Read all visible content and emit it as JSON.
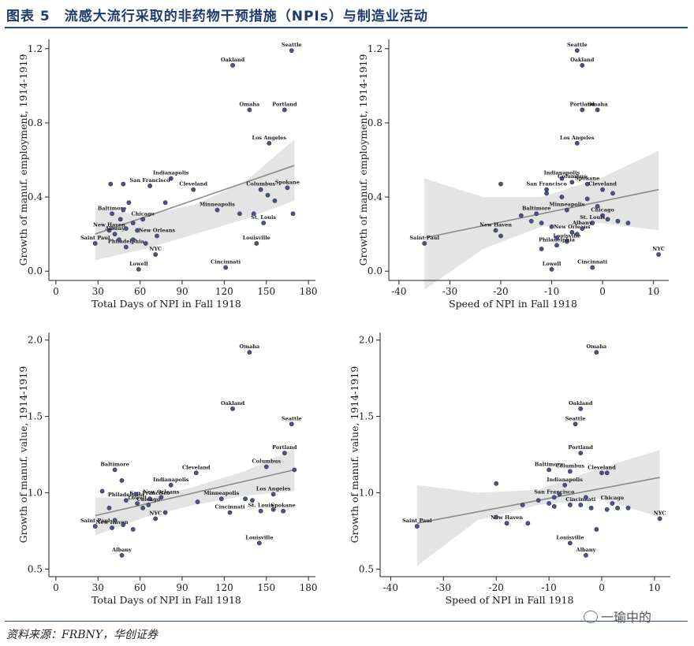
{
  "header": {
    "figure_number": "图表 5",
    "title": "流感大流行采取的非药物干预措施（NPIs）与制造业活动"
  },
  "footer": {
    "source": "资料来源：FRBNY，华创证券",
    "watermark": "一瑜中的"
  },
  "chart_data": [
    {
      "type": "scatter",
      "title": "",
      "xlabel": "Total Days of NPI in Fall 1918",
      "ylabel": "Growth of manuf. employment, 1914-1919",
      "xlim": [
        -5,
        185
      ],
      "ylim": [
        -0.05,
        1.25
      ],
      "xticks": [
        0,
        30,
        60,
        90,
        120,
        150,
        180
      ],
      "yticks": [
        0.0,
        0.4,
        0.8,
        1.2
      ],
      "ytick_labels": [
        "0.0",
        "0.4",
        "0.8",
        "1.2"
      ],
      "fit": {
        "x0": 28,
        "y0": 0.2,
        "x1": 170,
        "y1": 0.57
      },
      "band": {
        "lower": [
          0.06,
          0.12,
          0.2,
          0.28,
          0.38
        ],
        "upper": [
          0.34,
          0.3,
          0.36,
          0.48,
          0.71
        ]
      },
      "points": [
        {
          "label": "Seattle",
          "x": 168,
          "y": 1.19
        },
        {
          "label": "Oakland",
          "x": 126,
          "y": 1.11
        },
        {
          "label": "Omaha",
          "x": 138,
          "y": 0.87
        },
        {
          "label": "Portland",
          "x": 163,
          "y": 0.87
        },
        {
          "label": "Los Angeles",
          "x": 152,
          "y": 0.69
        },
        {
          "label": "Indianapolis",
          "x": 82,
          "y": 0.5
        },
        {
          "label": "San Francisco",
          "x": 67,
          "y": 0.46
        },
        {
          "label": "Cleveland",
          "x": 98,
          "y": 0.44
        },
        {
          "label": "Columbus",
          "x": 146,
          "y": 0.44
        },
        {
          "label": "Spokane",
          "x": 165,
          "y": 0.45
        },
        {
          "label": "Minneapolis",
          "x": 115,
          "y": 0.33
        },
        {
          "label": "St. Louis",
          "x": 148,
          "y": 0.26
        },
        {
          "label": "Baltimore",
          "x": 40,
          "y": 0.31
        },
        {
          "label": "Chicago",
          "x": 62,
          "y": 0.28
        },
        {
          "label": "New Haven",
          "x": 38,
          "y": 0.22
        },
        {
          "label": "Albany",
          "x": 42,
          "y": 0.2
        },
        {
          "label": "Saint Paul",
          "x": 28,
          "y": 0.15
        },
        {
          "label": "New Orleans",
          "x": 72,
          "y": 0.19
        },
        {
          "label": "Philadelphia",
          "x": 50,
          "y": 0.13
        },
        {
          "label": "NYC",
          "x": 71,
          "y": 0.09
        },
        {
          "label": "Louisville",
          "x": 143,
          "y": 0.15
        },
        {
          "label": "Lowell",
          "x": 59,
          "y": 0.01
        },
        {
          "label": "Cincinnati",
          "x": 121,
          "y": 0.02
        },
        {
          "label": "",
          "x": 39,
          "y": 0.47
        },
        {
          "label": "",
          "x": 48,
          "y": 0.47
        },
        {
          "label": "",
          "x": 52,
          "y": 0.37
        },
        {
          "label": "",
          "x": 48,
          "y": 0.33
        },
        {
          "label": "",
          "x": 46,
          "y": 0.28
        },
        {
          "label": "",
          "x": 55,
          "y": 0.26
        },
        {
          "label": "",
          "x": 50,
          "y": 0.23
        },
        {
          "label": "",
          "x": 58,
          "y": 0.22
        },
        {
          "label": "",
          "x": 45,
          "y": 0.17
        },
        {
          "label": "",
          "x": 55,
          "y": 0.17
        },
        {
          "label": "",
          "x": 64,
          "y": 0.15
        },
        {
          "label": "",
          "x": 78,
          "y": 0.37
        },
        {
          "label": "",
          "x": 131,
          "y": 0.31
        },
        {
          "label": "",
          "x": 141,
          "y": 0.31
        },
        {
          "label": "",
          "x": 151,
          "y": 0.41
        },
        {
          "label": "",
          "x": 156,
          "y": 0.38
        },
        {
          "label": "",
          "x": 169,
          "y": 0.31
        }
      ]
    },
    {
      "type": "scatter",
      "title": "",
      "xlabel": "Speed of NPI in Fall 1918",
      "ylabel": "Growth of manuf. employment, 1914-1919",
      "xlim": [
        -42,
        13
      ],
      "ylim": [
        -0.05,
        1.25
      ],
      "xticks": [
        -40,
        -30,
        -20,
        -10,
        0,
        10
      ],
      "yticks": [
        0.0,
        0.4,
        0.8,
        1.2
      ],
      "ytick_labels": [
        "0.0",
        "0.4",
        "0.8",
        "1.2"
      ],
      "fit": {
        "x0": -35,
        "y0": 0.18,
        "x1": 11,
        "y1": 0.44
      },
      "band": {
        "lower": [
          -0.1,
          0.12,
          0.24,
          0.26,
          0.22
        ],
        "upper": [
          0.5,
          0.4,
          0.4,
          0.5,
          0.65
        ]
      },
      "points": [
        {
          "label": "Seattle",
          "x": -5,
          "y": 1.19
        },
        {
          "label": "Oakland",
          "x": -4,
          "y": 1.11
        },
        {
          "label": "Portland",
          "x": -4,
          "y": 0.87
        },
        {
          "label": "Omaha",
          "x": -1,
          "y": 0.87
        },
        {
          "label": "Los Angeles",
          "x": -5,
          "y": 0.69
        },
        {
          "label": "Indianapolis",
          "x": -8,
          "y": 0.5
        },
        {
          "label": "Columbus",
          "x": -6,
          "y": 0.48
        },
        {
          "label": "Spokane",
          "x": -3,
          "y": 0.47
        },
        {
          "label": "San Francisco",
          "x": -11,
          "y": 0.44
        },
        {
          "label": "Cleveland",
          "x": 0,
          "y": 0.44
        },
        {
          "label": "Minneapolis",
          "x": -7,
          "y": 0.33
        },
        {
          "label": "Baltimore",
          "x": -13,
          "y": 0.31
        },
        {
          "label": "Chicago",
          "x": 0,
          "y": 0.3
        },
        {
          "label": "St. Louis",
          "x": -2,
          "y": 0.26
        },
        {
          "label": "New Haven",
          "x": -21,
          "y": 0.22
        },
        {
          "label": "New Orleans",
          "x": -6,
          "y": 0.21
        },
        {
          "label": "Albany",
          "x": -4,
          "y": 0.23
        },
        {
          "label": "Louisville",
          "x": -7,
          "y": 0.16
        },
        {
          "label": "Philadelphia",
          "x": -9,
          "y": 0.14
        },
        {
          "label": "Saint Paul",
          "x": -35,
          "y": 0.15
        },
        {
          "label": "NYC",
          "x": 11,
          "y": 0.09
        },
        {
          "label": "Lowell",
          "x": -10,
          "y": 0.01
        },
        {
          "label": "Cincinnati",
          "x": -2,
          "y": 0.02
        },
        {
          "label": "",
          "x": -20,
          "y": 0.47
        },
        {
          "label": "",
          "x": -20,
          "y": 0.19
        },
        {
          "label": "",
          "x": -16,
          "y": 0.3
        },
        {
          "label": "",
          "x": -14,
          "y": 0.27
        },
        {
          "label": "",
          "x": -12,
          "y": 0.26
        },
        {
          "label": "",
          "x": -10,
          "y": 0.24
        },
        {
          "label": "",
          "x": -8,
          "y": 0.4
        },
        {
          "label": "",
          "x": -3,
          "y": 0.39
        },
        {
          "label": "",
          "x": -1,
          "y": 0.35
        },
        {
          "label": "",
          "x": 1,
          "y": 0.28
        },
        {
          "label": "",
          "x": 3,
          "y": 0.27
        },
        {
          "label": "",
          "x": 5,
          "y": 0.26
        },
        {
          "label": "",
          "x": 2,
          "y": 0.42
        },
        {
          "label": "",
          "x": -12,
          "y": 0.12
        },
        {
          "label": "",
          "x": -9,
          "y": 0.18
        },
        {
          "label": "",
          "x": -11,
          "y": 0.42
        },
        {
          "label": "",
          "x": -5,
          "y": 0.2
        }
      ]
    },
    {
      "type": "scatter",
      "title": "",
      "xlabel": "Total Days of NPI in Fall 1918",
      "ylabel": "Growth of manuf. value, 1914-1919",
      "xlim": [
        -5,
        185
      ],
      "ylim": [
        0.45,
        2.05
      ],
      "xticks": [
        0,
        30,
        60,
        90,
        120,
        150,
        180
      ],
      "yticks": [
        0.5,
        1.0,
        1.5,
        2.0
      ],
      "ytick_labels": [
        "0.5",
        "1.0",
        "1.5",
        "2.0"
      ],
      "fit": {
        "x0": 28,
        "y0": 0.85,
        "x1": 170,
        "y1": 1.15
      },
      "band": {
        "lower": [
          0.72,
          0.84,
          0.92,
          0.98,
          1.01
        ],
        "upper": [
          0.97,
          0.96,
          1.04,
          1.14,
          1.29
        ]
      },
      "points": [
        {
          "label": "Omaha",
          "x": 138,
          "y": 1.92
        },
        {
          "label": "Oakland",
          "x": 126,
          "y": 1.55
        },
        {
          "label": "Seattle",
          "x": 168,
          "y": 1.45
        },
        {
          "label": "Portland",
          "x": 163,
          "y": 1.26
        },
        {
          "label": "Columbus",
          "x": 150,
          "y": 1.17
        },
        {
          "label": "Baltimore",
          "x": 42,
          "y": 1.15
        },
        {
          "label": "Cleveland",
          "x": 100,
          "y": 1.13
        },
        {
          "label": "Indianapolis",
          "x": 82,
          "y": 1.05
        },
        {
          "label": "Los Angeles",
          "x": 155,
          "y": 0.99
        },
        {
          "label": "Minneapolis",
          "x": 118,
          "y": 0.96
        },
        {
          "label": "New Orleans",
          "x": 75,
          "y": 0.97
        },
        {
          "label": "San Francisco",
          "x": 67,
          "y": 0.96
        },
        {
          "label": "Philadelphia",
          "x": 50,
          "y": 0.95
        },
        {
          "label": "Lowell",
          "x": 58,
          "y": 0.93
        },
        {
          "label": "Chicago",
          "x": 66,
          "y": 0.92
        },
        {
          "label": "Cincinnati",
          "x": 124,
          "y": 0.87
        },
        {
          "label": "St. Louis",
          "x": 146,
          "y": 0.88
        },
        {
          "label": "Spokane",
          "x": 162,
          "y": 0.88
        },
        {
          "label": "NYC",
          "x": 71,
          "y": 0.83
        },
        {
          "label": "Saint Paul",
          "x": 28,
          "y": 0.78
        },
        {
          "label": "New Haven",
          "x": 40,
          "y": 0.77
        },
        {
          "label": "Louisville",
          "x": 145,
          "y": 0.67
        },
        {
          "label": "Albany",
          "x": 47,
          "y": 0.59
        },
        {
          "label": "",
          "x": 33,
          "y": 1.01
        },
        {
          "label": "",
          "x": 47,
          "y": 1.08
        },
        {
          "label": "",
          "x": 38,
          "y": 0.9
        },
        {
          "label": "",
          "x": 42,
          "y": 0.82
        },
        {
          "label": "",
          "x": 48,
          "y": 0.79
        },
        {
          "label": "",
          "x": 55,
          "y": 0.76
        },
        {
          "label": "",
          "x": 62,
          "y": 0.9
        },
        {
          "label": "",
          "x": 78,
          "y": 0.87
        },
        {
          "label": "",
          "x": 101,
          "y": 0.94
        },
        {
          "label": "",
          "x": 135,
          "y": 0.96
        },
        {
          "label": "",
          "x": 155,
          "y": 0.89
        },
        {
          "label": "",
          "x": 170,
          "y": 1.15
        },
        {
          "label": "",
          "x": 140,
          "y": 0.95
        },
        {
          "label": "",
          "x": 57,
          "y": 0.99
        }
      ]
    },
    {
      "type": "scatter",
      "title": "",
      "xlabel": "Speed of NPI in Fall 1918",
      "ylabel": "Growth of manuf. value, 1914-1919",
      "xlim": [
        -42,
        13
      ],
      "ylim": [
        0.45,
        2.05
      ],
      "xticks": [
        -40,
        -30,
        -20,
        -10,
        0,
        10
      ],
      "yticks": [
        0.5,
        1.0,
        1.5,
        2.0
      ],
      "ytick_labels": [
        "0.5",
        "1.0",
        "1.5",
        "2.0"
      ],
      "fit": {
        "x0": -35,
        "y0": 0.8,
        "x1": 11,
        "y1": 1.1
      },
      "band": {
        "lower": [
          0.52,
          0.82,
          0.92,
          0.96,
          0.84
        ],
        "upper": [
          1.05,
          1.0,
          1.02,
          1.16,
          1.28
        ]
      },
      "points": [
        {
          "label": "Omaha",
          "x": -1,
          "y": 1.92
        },
        {
          "label": "Oakland",
          "x": -4,
          "y": 1.55
        },
        {
          "label": "Seattle",
          "x": -5,
          "y": 1.45
        },
        {
          "label": "Portland",
          "x": -4,
          "y": 1.26
        },
        {
          "label": "Baltimore",
          "x": -10,
          "y": 1.15
        },
        {
          "label": "Columbus",
          "x": -6,
          "y": 1.14
        },
        {
          "label": "Cleveland",
          "x": 0,
          "y": 1.13
        },
        {
          "label": "Indianapolis",
          "x": -7,
          "y": 1.05
        },
        {
          "label": "San Francisco",
          "x": -9,
          "y": 0.97
        },
        {
          "label": "Chicago",
          "x": 2,
          "y": 0.93
        },
        {
          "label": "Cincinnati",
          "x": -4,
          "y": 0.92
        },
        {
          "label": "Saint Paul",
          "x": -35,
          "y": 0.78
        },
        {
          "label": "New Haven",
          "x": -18,
          "y": 0.8
        },
        {
          "label": "NYC",
          "x": 11,
          "y": 0.83
        },
        {
          "label": "Louisville",
          "x": -6,
          "y": 0.67
        },
        {
          "label": "Albany",
          "x": -3,
          "y": 0.59
        },
        {
          "label": "",
          "x": -20,
          "y": 1.06
        },
        {
          "label": "",
          "x": -20,
          "y": 0.84
        },
        {
          "label": "",
          "x": -14,
          "y": 0.8
        },
        {
          "label": "",
          "x": -15,
          "y": 0.92
        },
        {
          "label": "",
          "x": -12,
          "y": 0.95
        },
        {
          "label": "",
          "x": -10,
          "y": 0.93
        },
        {
          "label": "",
          "x": -8,
          "y": 0.99
        },
        {
          "label": "",
          "x": -6,
          "y": 0.92
        },
        {
          "label": "",
          "x": -3,
          "y": 0.97
        },
        {
          "label": "",
          "x": -2,
          "y": 0.9
        },
        {
          "label": "",
          "x": 1,
          "y": 0.89
        },
        {
          "label": "",
          "x": 3,
          "y": 0.9
        },
        {
          "label": "",
          "x": 5,
          "y": 0.9
        },
        {
          "label": "",
          "x": 1,
          "y": 1.13
        },
        {
          "label": "",
          "x": -1,
          "y": 0.76
        },
        {
          "label": "",
          "x": -9,
          "y": 0.91
        }
      ]
    }
  ]
}
